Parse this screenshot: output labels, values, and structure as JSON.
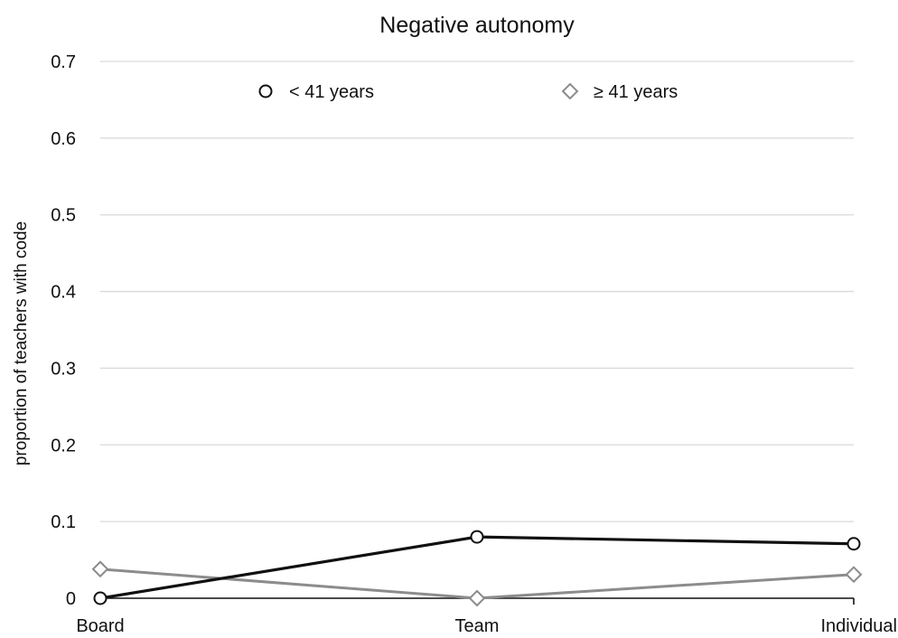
{
  "chart_data": {
    "type": "line",
    "title": "Negative autonomy",
    "ylabel": "proportion of teachers with code",
    "xlabel": "",
    "categories": [
      "Board",
      "Team",
      "Individual"
    ],
    "ylim": [
      0,
      0.7
    ],
    "yticks": [
      0,
      0.1,
      0.2,
      0.3,
      0.4,
      0.5,
      0.6,
      0.7
    ],
    "ytick_labels": [
      "0",
      "0.1",
      "0.2",
      "0.3",
      "0.4",
      "0.5",
      "0.6",
      "0.7"
    ],
    "grid": true,
    "legend_position": "top",
    "series": [
      {
        "name": "< 41 years",
        "marker": "circle",
        "color": "#111111",
        "values": [
          0.0,
          0.08,
          0.071
        ]
      },
      {
        "name": "≥ 41 years",
        "marker": "diamond",
        "color": "#8c8c8c",
        "values": [
          0.038,
          0.0,
          0.031
        ]
      }
    ]
  }
}
